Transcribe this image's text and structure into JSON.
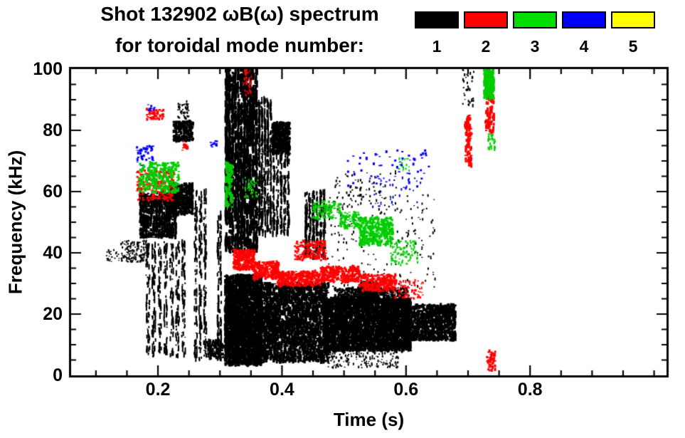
{
  "header": {
    "title_line1": "Shot 132902 ωB(ω) spectrum",
    "title_line2": "for toroidal mode number:"
  },
  "legend": {
    "entries": [
      {
        "label": "1",
        "color": "#000000"
      },
      {
        "label": "2",
        "color": "#ff0000"
      },
      {
        "label": "3",
        "color": "#00e000"
      },
      {
        "label": "4",
        "color": "#0000ff"
      },
      {
        "label": "5",
        "color": "#ffff00"
      }
    ]
  },
  "chart_data": {
    "type": "scatter",
    "title": "Shot 132902 ωB(ω) spectrum for toroidal mode number: 1 2 3 4 5",
    "xlabel": "Time (s)",
    "ylabel": "Frequency (kHz)",
    "xlim": [
      0.06,
      1.02
    ],
    "ylim": [
      0,
      100
    ],
    "x_major_ticks": [
      0.2,
      0.4,
      0.6,
      0.8
    ],
    "x_tick_labels": [
      "0.2",
      "0.4",
      "0.6",
      "0.8"
    ],
    "x_minor_step": 0.05,
    "y_major_ticks": [
      0,
      20,
      40,
      60,
      80,
      100
    ],
    "y_tick_labels": [
      "0",
      "20",
      "40",
      "60",
      "80",
      "100"
    ],
    "y_minor_step": 5,
    "grid": false,
    "frame_color": "#000000",
    "background": "#ffffff",
    "legend_position": "top-right",
    "series": [
      {
        "name": "1",
        "color": "#000000",
        "clusters": [
          {
            "t": [
              0.117,
              0.138
            ],
            "f": [
              37,
              41
            ],
            "n": 25,
            "w": 2,
            "h": 2
          },
          {
            "t": [
              0.14,
              0.186
            ],
            "f": [
              37,
              44
            ],
            "n": 150,
            "w": 2,
            "h": 3
          },
          {
            "t": [
              0.17,
              0.23
            ],
            "f": [
              45,
              59.5
            ],
            "n": 900,
            "w": 3,
            "h": 5,
            "c": 14
          },
          {
            "t": [
              0.218,
              0.257
            ],
            "f": [
              52.5,
              62.5
            ],
            "n": 520,
            "w": 3,
            "h": 5,
            "c": 9
          },
          {
            "t": [
              0.225,
              0.257
            ],
            "f": [
              76.5,
              83
            ],
            "n": 250,
            "w": 3,
            "h": 4
          },
          {
            "t": [
              0.232,
              0.25
            ],
            "f": [
              83.5,
              89.5
            ],
            "n": 50,
            "w": 2,
            "h": 3
          },
          {
            "t": [
              0.179,
              0.246
            ],
            "f": [
              6,
              43.5
            ],
            "n": 420,
            "w": 2,
            "h": 9,
            "c": 7
          },
          {
            "t": [
              0.257,
              0.28
            ],
            "f": [
              5,
              60
            ],
            "n": 260,
            "w": 2,
            "h": 9,
            "c": 3
          },
          {
            "t": [
              0.295,
              0.303
            ],
            "f": [
              5,
              53
            ],
            "n": 130,
            "w": 2,
            "h": 9,
            "c": 2
          },
          {
            "t": [
              0.28,
              0.307
            ],
            "f": [
              5.5,
              11.5
            ],
            "n": 120,
            "w": 3,
            "h": 4
          },
          {
            "t": [
              0.308,
              0.361
            ],
            "f": [
              40.5,
              100
            ],
            "n": 1500,
            "w": 3,
            "h": 12,
            "c": 11
          },
          {
            "t": [
              0.308,
              0.368
            ],
            "f": [
              3.5,
              32.5
            ],
            "n": 2600,
            "w": 3,
            "h": 6
          },
          {
            "t": [
              0.361,
              0.384
            ],
            "f": [
              46,
              90
            ],
            "n": 430,
            "w": 2,
            "h": 10,
            "c": 5
          },
          {
            "t": [
              0.384,
              0.413
            ],
            "f": [
              72,
              82.5
            ],
            "n": 420,
            "w": 3,
            "h": 5
          },
          {
            "t": [
              0.384,
              0.413
            ],
            "f": [
              46,
              72
            ],
            "n": 250,
            "w": 2,
            "h": 8,
            "c": 5
          },
          {
            "t": [
              0.368,
              0.475
            ],
            "f": [
              4.5,
              30
            ],
            "n": 2300,
            "w": 3,
            "h": 6
          },
          {
            "t": [
              0.436,
              0.471
            ],
            "f": [
              38.5,
              60
            ],
            "n": 360,
            "w": 2,
            "h": 8,
            "c": 6
          },
          {
            "t": [
              0.467,
              0.608
            ],
            "f": [
              8,
              25
            ],
            "n": 3200,
            "w": 3,
            "h": 6
          },
          {
            "t": [
              0.485,
              0.605
            ],
            "f": [
              23.5,
              28.5
            ],
            "n": 450,
            "w": 3,
            "h": 4
          },
          {
            "t": [
              0.524,
              0.553
            ],
            "f": [
              24.5,
              30.5
            ],
            "n": 300,
            "w": 3,
            "h": 4
          },
          {
            "t": [
              0.608,
              0.68
            ],
            "f": [
              11.5,
              23
            ],
            "n": 950,
            "w": 3,
            "h": 5
          },
          {
            "t": [
              0.473,
              0.588
            ],
            "f": [
              2.5,
              7.5
            ],
            "n": 150,
            "w": 2,
            "h": 3
          },
          {
            "t": [
              0.446,
              0.647
            ],
            "f": [
              27.5,
              59.5
            ],
            "n": 200,
            "w": 2,
            "h": 3
          },
          {
            "t": [
              0.482,
              0.588
            ],
            "f": [
              54.5,
              67
            ],
            "n": 90,
            "w": 2,
            "h": 3
          },
          {
            "t": [
              0.69,
              0.71
            ],
            "f": [
              88,
              100
            ],
            "n": 35,
            "w": 2,
            "h": 4
          }
        ]
      },
      {
        "name": "2",
        "color": "#ff0000",
        "clusters": [
          {
            "t": [
              0.166,
              0.226
            ],
            "f": [
              57,
              67
            ],
            "n": 220,
            "w": 3,
            "h": 3
          },
          {
            "t": [
              0.182,
              0.209
            ],
            "f": [
              83.5,
              87
            ],
            "n": 55,
            "w": 3,
            "h": 3
          },
          {
            "t": [
              0.237,
              0.248
            ],
            "f": [
              73.5,
              76.5
            ],
            "n": 16,
            "w": 3,
            "h": 3
          },
          {
            "t": [
              0.338,
              0.351
            ],
            "f": [
              91,
              100
            ],
            "n": 40,
            "w": 2,
            "h": 4
          },
          {
            "t": [
              0.322,
              0.356
            ],
            "f": [
              34.5,
              41
            ],
            "n": 240,
            "w": 3,
            "h": 4
          },
          {
            "t": [
              0.354,
              0.395
            ],
            "f": [
              31.5,
              37
            ],
            "n": 240,
            "w": 3,
            "h": 4
          },
          {
            "t": [
              0.393,
              0.462
            ],
            "f": [
              29,
              34
            ],
            "n": 300,
            "w": 3,
            "h": 4
          },
          {
            "t": [
              0.421,
              0.471
            ],
            "f": [
              37.5,
              44
            ],
            "n": 160,
            "w": 3,
            "h": 3
          },
          {
            "t": [
              0.462,
              0.525
            ],
            "f": [
              30.5,
              35.5
            ],
            "n": 270,
            "w": 3,
            "h": 4
          },
          {
            "t": [
              0.525,
              0.584
            ],
            "f": [
              27.5,
              33
            ],
            "n": 250,
            "w": 3,
            "h": 4
          },
          {
            "t": [
              0.582,
              0.628
            ],
            "f": [
              25,
              31
            ],
            "n": 90,
            "w": 2,
            "h": 3
          },
          {
            "t": [
              0.695,
              0.706
            ],
            "f": [
              68.5,
              85
            ],
            "n": 90,
            "w": 3,
            "h": 6
          },
          {
            "t": [
              0.728,
              0.742
            ],
            "f": [
              79.5,
              91
            ],
            "n": 80,
            "w": 3,
            "h": 6
          },
          {
            "t": [
              0.729,
              0.744
            ],
            "f": [
              1.5,
              8
            ],
            "n": 55,
            "w": 3,
            "h": 4
          }
        ]
      },
      {
        "name": "3",
        "color": "#00cc00",
        "clusters": [
          {
            "t": [
              0.17,
              0.234
            ],
            "f": [
              59.5,
              69.5
            ],
            "n": 300,
            "w": 3,
            "h": 4
          },
          {
            "t": [
              0.309,
              0.32
            ],
            "f": [
              55,
              69.5
            ],
            "n": 90,
            "w": 3,
            "h": 7
          },
          {
            "t": [
              0.34,
              0.361
            ],
            "f": [
              58,
              65
            ],
            "n": 45,
            "w": 2,
            "h": 3
          },
          {
            "t": [
              0.45,
              0.494
            ],
            "f": [
              51,
              57
            ],
            "n": 110,
            "w": 3,
            "h": 3
          },
          {
            "t": [
              0.494,
              0.525
            ],
            "f": [
              48,
              53.5
            ],
            "n": 100,
            "w": 3,
            "h": 3
          },
          {
            "t": [
              0.525,
              0.579
            ],
            "f": [
              42.5,
              51.5
            ],
            "n": 380,
            "w": 3,
            "h": 4
          },
          {
            "t": [
              0.574,
              0.62
            ],
            "f": [
              36,
              44
            ],
            "n": 110,
            "w": 2,
            "h": 3
          },
          {
            "t": [
              0.588,
              0.606
            ],
            "f": [
              66.5,
              71
            ],
            "n": 20,
            "w": 2,
            "h": 3
          },
          {
            "t": [
              0.726,
              0.742
            ],
            "f": [
              90.5,
              100
            ],
            "n": 170,
            "w": 3,
            "h": 7
          },
          {
            "t": [
              0.732,
              0.744
            ],
            "f": [
              73.5,
              79
            ],
            "n": 35,
            "w": 2,
            "h": 4
          }
        ]
      },
      {
        "name": "4",
        "color": "#0000ff",
        "clusters": [
          {
            "t": [
              0.166,
              0.193
            ],
            "f": [
              68.5,
              75
            ],
            "n": 40,
            "w": 3,
            "h": 3
          },
          {
            "t": [
              0.184,
              0.195
            ],
            "f": [
              86.5,
              88.5
            ],
            "n": 10,
            "w": 3,
            "h": 3
          },
          {
            "t": [
              0.285,
              0.296
            ],
            "f": [
              74.5,
              77.5
            ],
            "n": 12,
            "w": 3,
            "h": 3
          },
          {
            "t": [
              0.505,
              0.638
            ],
            "f": [
              61.5,
              73.5
            ],
            "n": 55,
            "w": 3,
            "h": 3
          },
          {
            "t": [
              0.542,
              0.634
            ],
            "f": [
              55,
              64.5
            ],
            "n": 35,
            "w": 2,
            "h": 3
          }
        ]
      },
      {
        "name": "5",
        "color": "#ffff00",
        "clusters": []
      }
    ]
  }
}
